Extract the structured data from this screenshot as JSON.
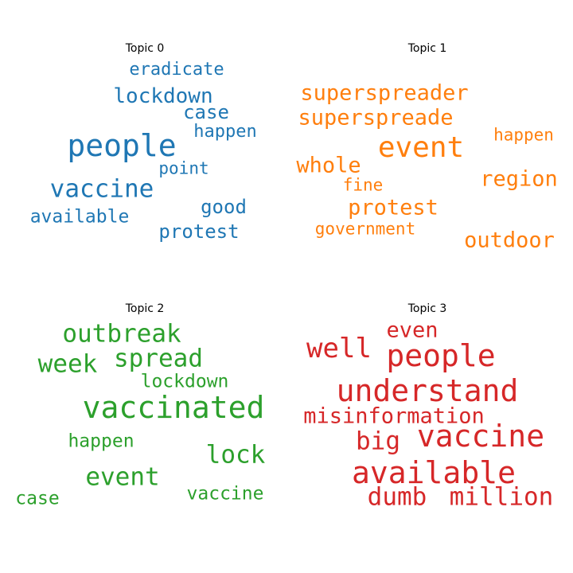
{
  "chart_data": [
    {
      "type": "wordcloud",
      "title": "Topic 0",
      "color": "#1f77b4",
      "words": [
        "people",
        "vaccine",
        "lockdown",
        "protest",
        "available",
        "case",
        "good",
        "eradicate",
        "happen",
        "point"
      ]
    },
    {
      "type": "wordcloud",
      "title": "Topic 1",
      "color": "#ff7f0e",
      "words": [
        "event",
        "superspreader",
        "superspreade",
        "region",
        "protest",
        "outdoor",
        "whole",
        "happen",
        "fine",
        "government"
      ]
    },
    {
      "type": "wordcloud",
      "title": "Topic 2",
      "color": "#2ca02c",
      "words": [
        "vaccinated",
        "outbreak",
        "spread",
        "week",
        "lock",
        "event",
        "lockdown",
        "happen",
        "vaccine",
        "case"
      ]
    },
    {
      "type": "wordcloud",
      "title": "Topic 3",
      "color": "#d62728",
      "words": [
        "understand",
        "available",
        "people",
        "vaccine",
        "well",
        "million",
        "dumb",
        "misinformation",
        "big",
        "even"
      ]
    }
  ]
}
